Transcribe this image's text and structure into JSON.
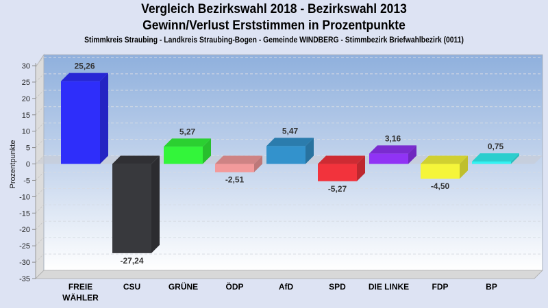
{
  "chart_data": {
    "type": "bar",
    "title": "Vergleich Bezirkswahl 2018 - Bezirkswahl 2013",
    "subtitle": "Gewinn/Verlust Erststimmen in Prozentpunkte",
    "subtitle2": "Stimmkreis Straubing - Landkreis Straubing-Bogen - Gemeinde WINDBERG - Stimmbezirk Briefwahlbezirk (0011)",
    "xlabel": "",
    "ylabel": "Prozentpunkte",
    "ylim": [
      -35,
      30
    ],
    "yticks": [
      30,
      25,
      20,
      15,
      10,
      5,
      0,
      -5,
      -10,
      -15,
      -20,
      -25,
      -30,
      -35
    ],
    "grid": true,
    "categories": [
      "FREIE WÄHLER",
      "CSU",
      "GRÜNE",
      "ÖDP",
      "AfD",
      "SPD",
      "DIE LINKE",
      "FDP",
      "BP"
    ],
    "category_lines": [
      [
        "FREIE",
        "WÄHLER"
      ],
      [
        "CSU"
      ],
      [
        "GRÜNE"
      ],
      [
        "ÖDP"
      ],
      [
        "AfD"
      ],
      [
        "SPD"
      ],
      [
        "DIE LINKE"
      ],
      [
        "FDP"
      ],
      [
        "BP"
      ]
    ],
    "values": [
      25.26,
      -27.24,
      5.27,
      -2.51,
      5.47,
      -5.27,
      3.16,
      -4.5,
      0.75
    ],
    "value_labels": [
      "25,26",
      "-27,24",
      "5,27",
      "-2,51",
      "5,47",
      "-5,27",
      "3,16",
      "-4,50",
      "0,75"
    ],
    "colors": [
      "#2e2efa",
      "#38393d",
      "#33f53a",
      "#f29a9b",
      "#3392cc",
      "#f2333c",
      "#9033f5",
      "#f5f53a",
      "#33f2f2"
    ]
  }
}
